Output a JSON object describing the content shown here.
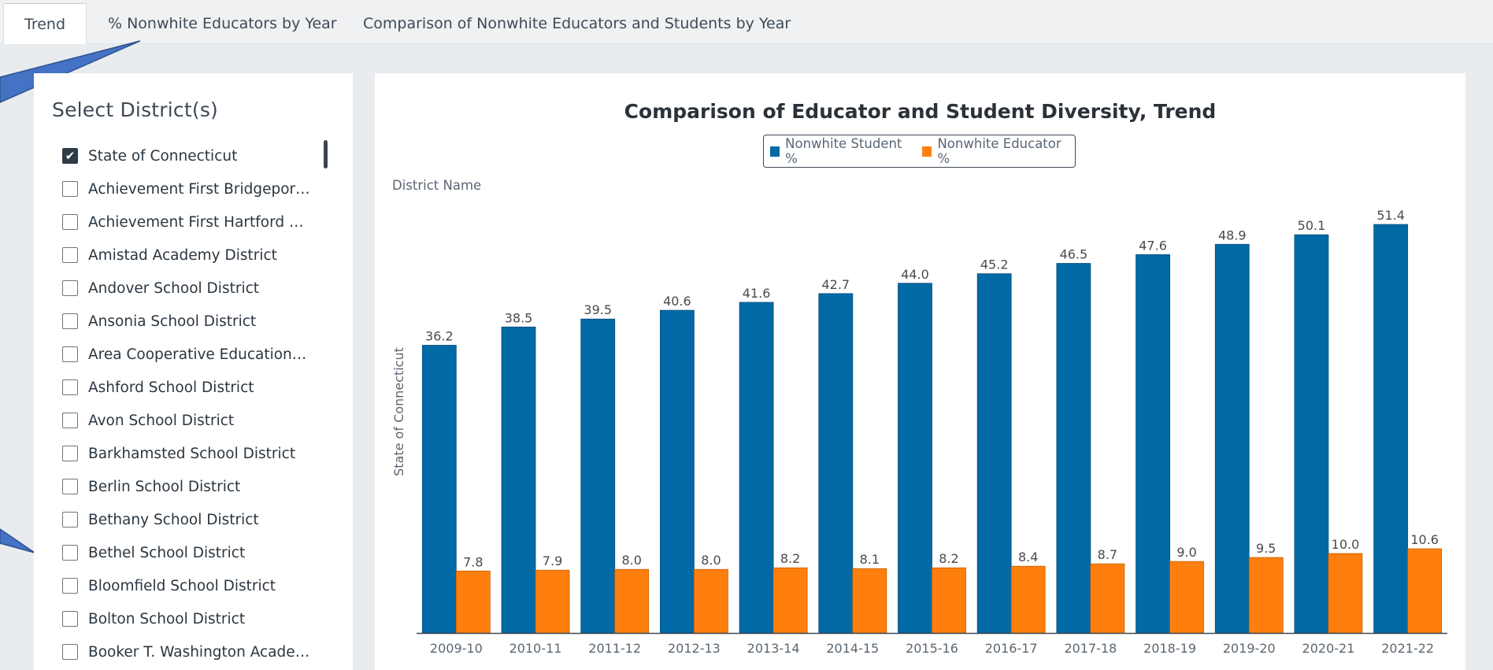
{
  "tabs": [
    {
      "label": "Trend",
      "active": true
    },
    {
      "label": "% Nonwhite Educators by Year",
      "active": false
    },
    {
      "label": "Comparison of Nonwhite Educators and Students by Year",
      "active": false
    }
  ],
  "sidebar": {
    "title": "Select District(s)",
    "items": [
      {
        "label": "State of Connecticut",
        "checked": true
      },
      {
        "label": "Achievement First Bridgeport Academy District",
        "checked": false
      },
      {
        "label": "Achievement First Hartford Academy District",
        "checked": false
      },
      {
        "label": "Amistad Academy District",
        "checked": false
      },
      {
        "label": "Andover School District",
        "checked": false
      },
      {
        "label": "Ansonia School District",
        "checked": false
      },
      {
        "label": "Area Cooperative Educational Services",
        "checked": false
      },
      {
        "label": "Ashford School District",
        "checked": false
      },
      {
        "label": "Avon School District",
        "checked": false
      },
      {
        "label": "Barkhamsted School District",
        "checked": false
      },
      {
        "label": "Berlin School District",
        "checked": false
      },
      {
        "label": "Bethany School District",
        "checked": false
      },
      {
        "label": "Bethel School District",
        "checked": false
      },
      {
        "label": "Bloomfield School District",
        "checked": false
      },
      {
        "label": "Bolton School District",
        "checked": false
      },
      {
        "label": "Booker T. Washington Academy District",
        "checked": false
      }
    ]
  },
  "colors": {
    "student": "#0069a6",
    "educator": "#ff7f0e"
  },
  "chart_data": {
    "type": "bar",
    "title": "Comparison of Educator and Student Diversity, Trend",
    "group_label": "District Name",
    "row_label": "State of Connecticut",
    "categories": [
      "2009-10",
      "2010-11",
      "2011-12",
      "2012-13",
      "2013-14",
      "2014-15",
      "2015-16",
      "2016-17",
      "2017-18",
      "2018-19",
      "2019-20",
      "2020-21",
      "2021-22"
    ],
    "series": [
      {
        "name": "Nonwhite Student %",
        "values": [
          36.2,
          38.5,
          39.5,
          40.6,
          41.6,
          42.7,
          44.0,
          45.2,
          46.5,
          47.6,
          48.9,
          50.1,
          51.4
        ]
      },
      {
        "name": "Nonwhite Educator %",
        "values": [
          7.8,
          7.9,
          8.0,
          8.0,
          8.2,
          8.1,
          8.2,
          8.4,
          8.7,
          9.0,
          9.5,
          10.0,
          10.6
        ]
      }
    ],
    "ylim": [
      0,
      52
    ],
    "legend": "top-center",
    "grid": false
  }
}
